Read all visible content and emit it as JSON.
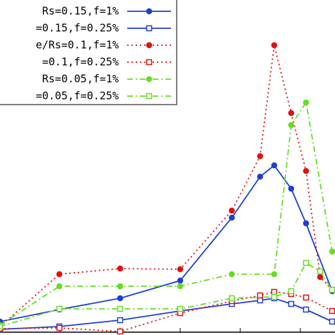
{
  "chart_data": {
    "type": "line",
    "xlim": [
      0,
      474
    ],
    "ylim": [
      0,
      470
    ],
    "xticks": [
      0,
      85,
      170,
      255,
      340,
      425
    ],
    "legend": "upper left",
    "series": [
      {
        "name": "Rs=0.15,f=1%",
        "color": "#1f3fd0",
        "marker": "filled-circle",
        "dash": "solid",
        "x": [
          0,
          84,
          170,
          255,
          328,
          368,
          388,
          412,
          433,
          470
        ],
        "values": [
          15,
          32,
          48,
          73,
          162,
          220,
          236,
          203,
          154,
          58
        ]
      },
      {
        "name": "=0.15,f=0.25%",
        "color": "#1f3fd0",
        "marker": "open-square",
        "dash": "solid",
        "x": [
          0,
          84,
          170,
          255,
          328,
          368,
          388,
          412,
          433,
          470
        ],
        "values": [
          4,
          8,
          17,
          30,
          40,
          45,
          48,
          40,
          32,
          15
        ]
      },
      {
        "name": "e/Rs=0.1,f=1%",
        "color": "#e01010",
        "marker": "filled-circle",
        "dash": "dotted",
        "x": [
          0,
          84,
          170,
          255,
          328,
          368,
          388,
          412,
          433,
          453,
          470
        ],
        "values": [
          8,
          82,
          90,
          89,
          172,
          249,
          406,
          310,
          228,
          78,
          60
        ]
      },
      {
        "name": "=0.1,f=0.25%",
        "color": "#e01010",
        "marker": "open-square",
        "dash": "dotted",
        "x": [
          0,
          84,
          170,
          255,
          328,
          368,
          388,
          412,
          433,
          470
        ],
        "values": [
          5,
          6,
          1,
          27,
          44,
          52,
          57,
          54,
          49,
          30
        ]
      },
      {
        "name": "Rs=0.05,f=1%",
        "color": "#66dd22",
        "marker": "filled-circle",
        "dash": "dashdot",
        "x": [
          0,
          84,
          170,
          255,
          328,
          388,
          412,
          433,
          470
        ],
        "values": [
          10,
          65,
          65,
          65,
          82,
          82,
          293,
          325,
          114
        ]
      },
      {
        "name": "=0.05,f=0.25%",
        "color": "#66dd22",
        "marker": "open-square",
        "dash": "dashdot",
        "x": [
          0,
          84,
          170,
          255,
          328,
          388,
          412,
          433,
          453,
          470
        ],
        "values": [
          8,
          33,
          33,
          33,
          48,
          50,
          58,
          98,
          86,
          60
        ]
      }
    ]
  }
}
